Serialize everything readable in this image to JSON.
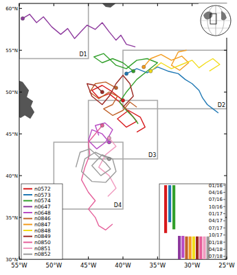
{
  "chart_data": {
    "type": "line",
    "xlim": [
      -55,
      -25
    ],
    "ylim": [
      30,
      60.6
    ],
    "xticks": [
      {
        "value": -55,
        "label": "55°W"
      },
      {
        "value": -50,
        "label": "50°W"
      },
      {
        "value": -45,
        "label": "45°W"
      },
      {
        "value": -40,
        "label": "40°W"
      },
      {
        "value": -35,
        "label": "35°W"
      },
      {
        "value": -30,
        "label": "30°W"
      },
      {
        "value": -25,
        "label": "25°W"
      }
    ],
    "yticks": [
      {
        "value": 30,
        "label": "30°N"
      },
      {
        "value": 35,
        "label": "35°N"
      },
      {
        "value": 40,
        "label": "40°N"
      },
      {
        "value": 45,
        "label": "45°N"
      },
      {
        "value": 50,
        "label": "50°N"
      },
      {
        "value": 55,
        "label": "55°N"
      },
      {
        "value": 60,
        "label": "60°N"
      }
    ],
    "legend": "lower left",
    "marker": "circle",
    "regions": [
      {
        "label": "D1",
        "lon": [
          -55,
          -45
        ],
        "lat": [
          54,
          61
        ]
      },
      {
        "label": "D2",
        "lon": [
          -40,
          -25
        ],
        "lat": [
          48,
          55
        ]
      },
      {
        "label": "D3",
        "lon": [
          -45,
          -35
        ],
        "lat": [
          42,
          49
        ]
      },
      {
        "label": "D4",
        "lon": [
          -50,
          -40
        ],
        "lat": [
          36,
          44
        ]
      }
    ],
    "timeline": {
      "ylim": [
        2015.95,
        2018.6
      ],
      "yticks": [
        {
          "value": 2016.0,
          "label": "01/16"
        },
        {
          "value": 2016.25,
          "label": "04/16"
        },
        {
          "value": 2016.5,
          "label": "07/16"
        },
        {
          "value": 2016.75,
          "label": "10/16"
        },
        {
          "value": 2017.0,
          "label": "01/17"
        },
        {
          "value": 2017.25,
          "label": "04/17"
        },
        {
          "value": 2017.5,
          "label": "07/17"
        },
        {
          "value": 2017.75,
          "label": "10/17"
        },
        {
          "value": 2018.0,
          "label": "01/18"
        },
        {
          "value": 2018.25,
          "label": "04/18"
        },
        {
          "value": 2018.5,
          "label": "07/18"
        }
      ]
    },
    "series": [
      {
        "name": "n0572",
        "color": "#d7191c",
        "start": 2016.0,
        "end": 2017.68,
        "x": [
          -40,
          -41.5,
          -43,
          -44.5,
          -43.5,
          -42,
          -40.5,
          -39,
          -38,
          -39.5,
          -40.8,
          -39.2,
          -37.5,
          -36.8,
          -38
        ],
        "values": [
          49,
          50,
          50.8,
          50.2,
          49.3,
          49.8,
          48.8,
          47.5,
          46.5,
          45.8,
          46.8,
          47.8,
          47.0,
          45.8,
          45.2
        ]
      },
      {
        "name": "n0573",
        "color": "#1f78b4",
        "start": 2016.0,
        "end": 2017.3,
        "x": [
          -39.5,
          -38,
          -36.5,
          -35,
          -33.5,
          -32,
          -31,
          -30,
          -29,
          -28.5,
          -27.8,
          -27,
          -26.2
        ],
        "values": [
          52.2,
          52.8,
          52.3,
          53.0,
          52.5,
          52.2,
          51.5,
          51.0,
          50.2,
          49.3,
          48.5,
          48.0,
          47.5
        ]
      },
      {
        "name": "n0574",
        "color": "#33a02c",
        "start": 2016.0,
        "end": 2017.55,
        "x": [
          -38.5,
          -40,
          -41.5,
          -43,
          -44.2,
          -42.8,
          -41,
          -39.5,
          -38,
          -36.5,
          -35,
          -36.5,
          -38,
          -39.5,
          -40.5,
          -39.5,
          -38.5,
          -37.8
        ],
        "values": [
          52.5,
          53.5,
          54.0,
          53.5,
          54.2,
          54.6,
          53.2,
          52.8,
          53.8,
          54.0,
          53.5,
          52.5,
          51.5,
          50.0,
          48.8,
          47.8,
          47.0,
          46.2
        ]
      },
      {
        "name": "n0647",
        "color": "#8e3a9e",
        "start": 2017.78,
        "end": 2018.6,
        "x": [
          -54.5,
          -53.5,
          -52.5,
          -51.5,
          -50.3,
          -49.0,
          -48.0,
          -47.0,
          -46.0,
          -45.2,
          -44.0,
          -43.0,
          -42.0,
          -41.0,
          -40.3,
          -39.5,
          -38.2
        ],
        "values": [
          58.8,
          59.3,
          58.3,
          59.0,
          57.8,
          56.9,
          57.6,
          56.4,
          57.3,
          58.0,
          57.5,
          58.3,
          57.2,
          56.2,
          56.8,
          55.7,
          55.4
        ]
      },
      {
        "name": "n0648",
        "color": "#b84bc4",
        "start": 2017.78,
        "end": 2018.55,
        "x": [
          -42,
          -43,
          -44.5,
          -45,
          -43.8,
          -42.5,
          -41.5,
          -42.6,
          -44,
          -43.5
        ],
        "values": [
          44,
          45,
          45.5,
          44.2,
          43.2,
          44.0,
          45.5,
          46.3,
          46,
          44.8
        ]
      },
      {
        "name": "n0846",
        "color": "#c0622a",
        "start": 2017.8,
        "end": 2018.6,
        "x": [
          -41,
          -42.5,
          -44,
          -44.8,
          -43.5,
          -42,
          -40.8,
          -41.5,
          -42.8,
          -41.5,
          -40,
          -39,
          -38
        ],
        "values": [
          50.5,
          51.2,
          51,
          50,
          49.2,
          50,
          49.5,
          48.5,
          48,
          47.2,
          47.8,
          48.8,
          48.2
        ]
      },
      {
        "name": "n0847",
        "color": "#f39c1e",
        "start": 2017.8,
        "end": 2018.6,
        "x": [
          -37,
          -36,
          -34.5,
          -33,
          -31.5,
          -30.5,
          -31.8,
          -33,
          -32,
          -30.8
        ],
        "values": [
          53,
          54,
          54.5,
          53.8,
          54.3,
          53.5,
          52.6,
          53.2,
          54.8,
          55
        ]
      },
      {
        "name": "n0848",
        "color": "#f2dc1a",
        "start": 2017.8,
        "end": 2018.6,
        "x": [
          -36,
          -34.5,
          -33,
          -31.5,
          -30,
          -29,
          -28,
          -27,
          -26,
          -27.5
        ],
        "values": [
          52.5,
          53.5,
          52.8,
          53.3,
          53.8,
          52.9,
          53.5,
          54,
          53.3,
          52.5
        ]
      },
      {
        "name": "n0849",
        "color": "#9c2a24",
        "start": 2017.8,
        "end": 2018.6,
        "x": [
          -43,
          -44,
          -45.2,
          -44.5,
          -43,
          -42,
          -41,
          -40,
          -39,
          -38.5,
          -40
        ],
        "values": [
          50,
          50.8,
          51,
          49.5,
          48.5,
          49.5,
          51,
          52,
          51,
          49.5,
          48.2
        ]
      },
      {
        "name": "n0850",
        "color": "#e55f9a",
        "start": 2017.8,
        "end": 2018.6,
        "x": [
          -43,
          -44,
          -45,
          -44.8,
          -45.5,
          -46,
          -45,
          -44,
          -45,
          -44,
          -43.5,
          -42.5,
          -41.5
        ],
        "values": [
          46,
          45,
          44,
          42.5,
          41,
          39.5,
          38,
          37,
          36,
          35,
          34,
          33.5,
          34.2
        ]
      },
      {
        "name": "n0851",
        "color": "#f19cc0",
        "start": 2017.8,
        "end": 2018.6,
        "x": [
          -42,
          -41,
          -42.5,
          -43.5,
          -42,
          -41,
          -42.2
        ],
        "values": [
          44.5,
          43.5,
          42.5,
          41,
          40,
          38.5,
          37.5
        ]
      },
      {
        "name": "n0852",
        "color": "#9a9a9a",
        "start": 2017.8,
        "end": 2018.6,
        "x": [
          -42,
          -44,
          -45.5,
          -46,
          -44.5,
          -42.5,
          -41,
          -41.5,
          -43,
          -44.5,
          -43.2,
          -41.8,
          -42.5,
          -44.8,
          -46.2,
          -46.8
        ],
        "values": [
          42,
          42.8,
          42,
          40.5,
          39.3,
          39.2,
          40.5,
          42,
          42.5,
          41.2,
          40,
          40.8,
          41.5,
          43.2,
          42.8,
          41
        ]
      }
    ]
  }
}
